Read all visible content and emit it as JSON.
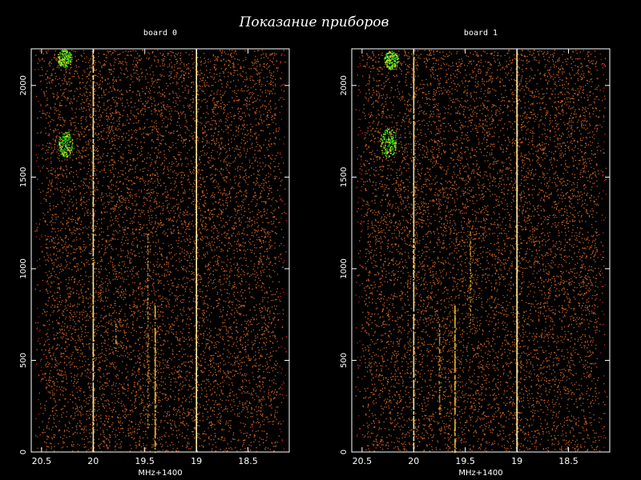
{
  "title": "Показание приборов",
  "chart_data": [
    {
      "type": "heatmap",
      "title": "board 0",
      "xlabel": "MHz+1400",
      "ylabel": "",
      "xlim": [
        20.6,
        18.1
      ],
      "ylim": [
        0,
        2200
      ],
      "x_ticks": [
        "20.5",
        "20",
        "19.5",
        "19",
        "18.5"
      ],
      "y_ticks": [
        "0",
        "500",
        "1000",
        "1500",
        "2000"
      ],
      "grid": false,
      "colors": {
        "noise": "#c8601e",
        "edge": "#e0101a",
        "line": "#ffd24a",
        "cluster": "#19c619",
        "axis": "#ffffff"
      },
      "vertical_lines": [
        {
          "x": 20.0,
          "y_range": [
            0,
            2200
          ],
          "strength": 0.9
        },
        {
          "x": 19.0,
          "y_range": [
            0,
            2200
          ],
          "strength": 1.0
        },
        {
          "x": 19.4,
          "y_range": [
            0,
            800
          ],
          "strength": 0.8
        },
        {
          "x": 19.78,
          "y_range": [
            550,
            700
          ],
          "strength": 0.6
        },
        {
          "x": 19.47,
          "y_range": [
            150,
            1200
          ],
          "strength": 0.4
        }
      ],
      "clusters": [
        {
          "x": 20.28,
          "y": 2150,
          "spread_x": 0.07,
          "spread_y": 50
        },
        {
          "x": 20.27,
          "y": 1680,
          "spread_x": 0.07,
          "spread_y": 70
        }
      ]
    },
    {
      "type": "heatmap",
      "title": "board 1",
      "xlabel": "MHz+1400",
      "ylabel": "",
      "xlim": [
        20.6,
        18.1
      ],
      "ylim": [
        0,
        2200
      ],
      "x_ticks": [
        "20.5",
        "20",
        "19.5",
        "19",
        "18.5"
      ],
      "y_ticks": [
        "0",
        "500",
        "1000",
        "1500",
        "2000"
      ],
      "grid": false,
      "colors": {
        "noise": "#c8601e",
        "edge": "#e0101a",
        "line": "#ffd24a",
        "cluster": "#19c619",
        "axis": "#ffffff"
      },
      "vertical_lines": [
        {
          "x": 20.0,
          "y_range": [
            0,
            2200
          ],
          "strength": 0.9
        },
        {
          "x": 19.0,
          "y_range": [
            0,
            2200
          ],
          "strength": 1.0
        },
        {
          "x": 19.6,
          "y_range": [
            0,
            800
          ],
          "strength": 0.8
        },
        {
          "x": 19.45,
          "y_range": [
            700,
            1200
          ],
          "strength": 0.4
        },
        {
          "x": 19.75,
          "y_range": [
            200,
            700
          ],
          "strength": 0.5
        }
      ],
      "clusters": [
        {
          "x": 20.22,
          "y": 2140,
          "spread_x": 0.07,
          "spread_y": 50
        },
        {
          "x": 20.25,
          "y": 1690,
          "spread_x": 0.08,
          "spread_y": 80
        }
      ]
    }
  ]
}
